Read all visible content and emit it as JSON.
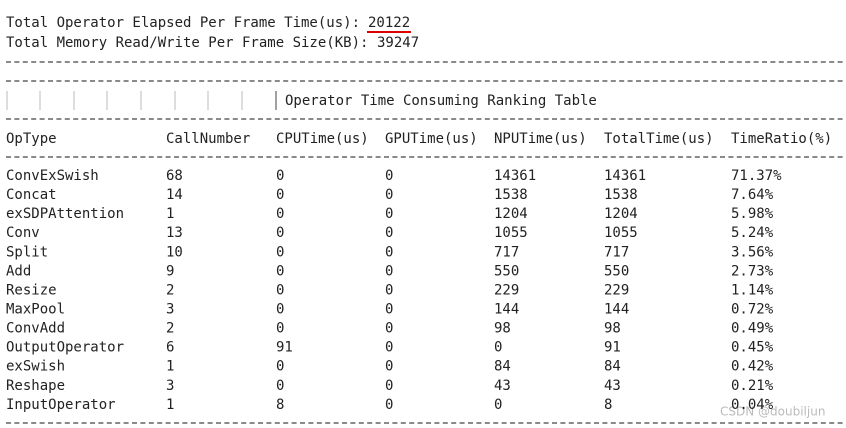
{
  "header": {
    "elapsed_label": "Total Operator Elapsed Per Frame Time(us):",
    "elapsed_value": "20122",
    "memory_label": "Total Memory Read/Write Per Frame Size(KB):",
    "memory_value": "39247"
  },
  "table": {
    "title": "Operator Time Consuming Ranking Table",
    "columns": [
      "OpType",
      "CallNumber",
      "CPUTime(us)",
      "GPUTime(us)",
      "NPUTime(us)",
      "TotalTime(us)",
      "TimeRatio(%)"
    ],
    "rows": [
      [
        "ConvExSwish",
        "68",
        "0",
        "0",
        "14361",
        "14361",
        "71.37%"
      ],
      [
        "Concat",
        "14",
        "0",
        "0",
        "1538",
        "1538",
        "7.64%"
      ],
      [
        "exSDPAttention",
        "1",
        "0",
        "0",
        "1204",
        "1204",
        "5.98%"
      ],
      [
        "Conv",
        "13",
        "0",
        "0",
        "1055",
        "1055",
        "5.24%"
      ],
      [
        "Split",
        "10",
        "0",
        "0",
        "717",
        "717",
        "3.56%"
      ],
      [
        "Add",
        "9",
        "0",
        "0",
        "550",
        "550",
        "2.73%"
      ],
      [
        "Resize",
        "2",
        "0",
        "0",
        "229",
        "229",
        "1.14%"
      ],
      [
        "MaxPool",
        "3",
        "0",
        "0",
        "144",
        "144",
        "0.72%"
      ],
      [
        "ConvAdd",
        "2",
        "0",
        "0",
        "98",
        "98",
        "0.49%"
      ],
      [
        "OutputOperator",
        "6",
        "91",
        "0",
        "0",
        "91",
        "0.45%"
      ],
      [
        "exSwish",
        "1",
        "0",
        "0",
        "84",
        "84",
        "0.42%"
      ],
      [
        "Reshape",
        "3",
        "0",
        "0",
        "43",
        "43",
        "0.21%"
      ],
      [
        "InputOperator",
        "1",
        "8",
        "0",
        "0",
        "8",
        "0.04%"
      ]
    ]
  },
  "watermark": "CSDN @doubiljun"
}
